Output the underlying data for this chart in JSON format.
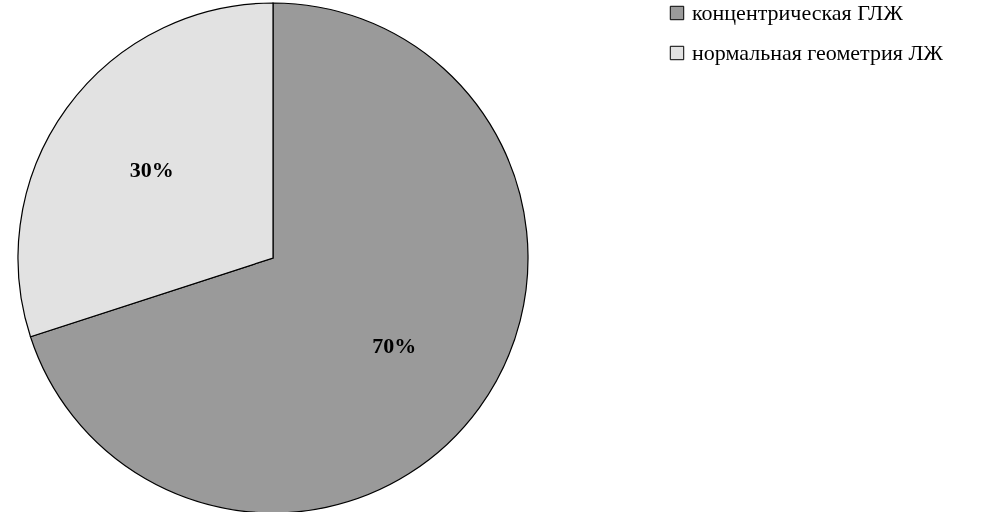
{
  "chart_data": {
    "type": "pie",
    "categories": [
      "концентрическая ГЛЖ",
      "нормальная геометрия ЛЖ"
    ],
    "values": [
      70,
      30
    ],
    "colors": [
      "#9a9a9a",
      "#e2e2e2"
    ],
    "value_labels": [
      "70%",
      "30%"
    ],
    "legend": "right"
  }
}
